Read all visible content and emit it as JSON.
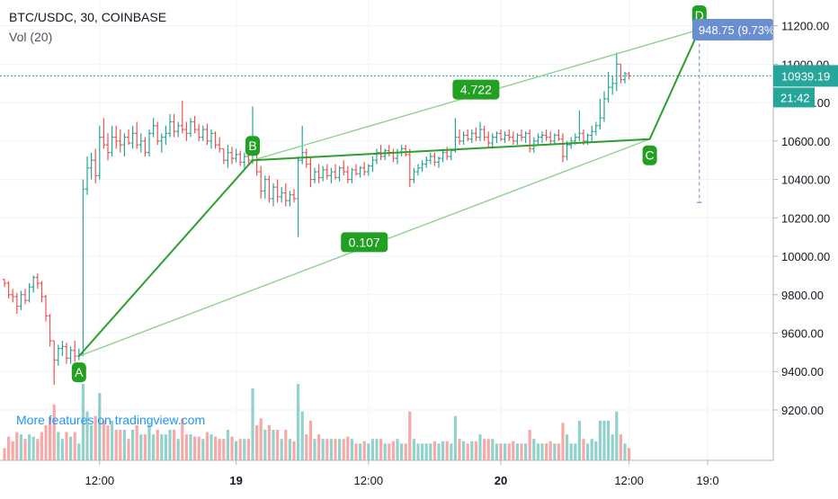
{
  "header": {
    "symbol_line": "BTC/USDC, 30, COINBASE",
    "volume_label": "Vol (20)"
  },
  "watermark": "More features on tradingview.com",
  "colors": {
    "up": "#26a69a",
    "down": "#ef5350",
    "pattern": "#2e9e2e",
    "pattern_light": "#8fd18f",
    "label_bg": "#22a022",
    "price_tag": "#26a69a",
    "measure_tag": "#6a8fd1",
    "watermark": "#2196f3"
  },
  "chart_data": {
    "type": "candlestick",
    "title": "BTC/USDC, 30, COINBASE",
    "ylim": [
      9050,
      11250
    ],
    "y_ticks": [
      "11200.00",
      "11000.00",
      "10800.00",
      "10600.00",
      "10400.00",
      "10200.00",
      "10000.00",
      "9800.00",
      "9600.00",
      "9400.00",
      "9200.00"
    ],
    "x_ticks": [
      "12:00",
      "19",
      "12:00",
      "20",
      "12:00",
      "19:0"
    ],
    "x_tick_index": [
      23,
      56,
      88,
      120,
      151,
      170
    ],
    "last_price": "10939.19",
    "countdown": "21:42",
    "measurement": "948.75 (9.73%",
    "pattern": {
      "points": [
        {
          "label": "A",
          "index": 18,
          "price": 9480
        },
        {
          "label": "B",
          "index": 60,
          "price": 10500
        },
        {
          "label": "C",
          "index": 156,
          "price": 10610
        },
        {
          "label": "D",
          "index": 168,
          "price": 11180
        }
      ],
      "ratios": [
        {
          "text": "4.722"
        },
        {
          "text": "0.107"
        }
      ]
    },
    "candles": [
      [
        9880,
        9880,
        9840,
        9860
      ],
      [
        9860,
        9870,
        9780,
        9800
      ],
      [
        9800,
        9830,
        9760,
        9790
      ],
      [
        9790,
        9810,
        9700,
        9740
      ],
      [
        9740,
        9820,
        9720,
        9800
      ],
      [
        9800,
        9830,
        9750,
        9770
      ],
      [
        9770,
        9860,
        9760,
        9840
      ],
      [
        9840,
        9900,
        9810,
        9890
      ],
      [
        9890,
        9910,
        9830,
        9860
      ],
      [
        9860,
        9870,
        9760,
        9790
      ],
      [
        9790,
        9800,
        9660,
        9690
      ],
      [
        9690,
        9700,
        9530,
        9560
      ],
      [
        9560,
        9560,
        9330,
        9460
      ],
      [
        9460,
        9540,
        9430,
        9520
      ],
      [
        9520,
        9560,
        9480,
        9530
      ],
      [
        9530,
        9550,
        9440,
        9470
      ],
      [
        9470,
        9530,
        9440,
        9510
      ],
      [
        9510,
        9560,
        9450,
        9480
      ],
      [
        9480,
        9520,
        9460,
        9490
      ],
      [
        9490,
        10400,
        9480,
        10350
      ],
      [
        10350,
        10520,
        10320,
        10460
      ],
      [
        10460,
        10540,
        10400,
        10500
      ],
      [
        10500,
        10560,
        10380,
        10420
      ],
      [
        10420,
        10680,
        10400,
        10620
      ],
      [
        10620,
        10720,
        10560,
        10580
      ],
      [
        10580,
        10640,
        10500,
        10540
      ],
      [
        10540,
        10680,
        10520,
        10620
      ],
      [
        10620,
        10680,
        10560,
        10600
      ],
      [
        10600,
        10660,
        10540,
        10580
      ],
      [
        10580,
        10640,
        10520,
        10620
      ],
      [
        10620,
        10660,
        10580,
        10590
      ],
      [
        10590,
        10680,
        10560,
        10640
      ],
      [
        10640,
        10700,
        10560,
        10580
      ],
      [
        10580,
        10640,
        10540,
        10600
      ],
      [
        10600,
        10620,
        10520,
        10540
      ],
      [
        10540,
        10660,
        10520,
        10640
      ],
      [
        10640,
        10720,
        10620,
        10680
      ],
      [
        10680,
        10700,
        10580,
        10600
      ],
      [
        10600,
        10640,
        10540,
        10620
      ],
      [
        10620,
        10680,
        10580,
        10640
      ],
      [
        10640,
        10740,
        10620,
        10700
      ],
      [
        10700,
        10740,
        10620,
        10650
      ],
      [
        10650,
        10700,
        10620,
        10680
      ],
      [
        10680,
        10810,
        10640,
        10660
      ],
      [
        10660,
        10700,
        10600,
        10640
      ],
      [
        10640,
        10720,
        10620,
        10700
      ],
      [
        10700,
        10730,
        10640,
        10660
      ],
      [
        10660,
        10690,
        10600,
        10620
      ],
      [
        10620,
        10680,
        10600,
        10660
      ],
      [
        10660,
        10690,
        10580,
        10600
      ],
      [
        10600,
        10660,
        10560,
        10640
      ],
      [
        10640,
        10650,
        10560,
        10580
      ],
      [
        10580,
        10620,
        10540,
        10560
      ],
      [
        10560,
        10560,
        10480,
        10500
      ],
      [
        10500,
        10580,
        10460,
        10540
      ],
      [
        10540,
        10570,
        10480,
        10510
      ],
      [
        10510,
        10560,
        10490,
        10530
      ],
      [
        10530,
        10550,
        10470,
        10490
      ],
      [
        10490,
        10540,
        10460,
        10520
      ],
      [
        10520,
        10560,
        10480,
        10500
      ],
      [
        10500,
        10780,
        10480,
        10540
      ],
      [
        10540,
        10560,
        10420,
        10440
      ],
      [
        10440,
        10470,
        10300,
        10340
      ],
      [
        10340,
        10420,
        10300,
        10400
      ],
      [
        10400,
        10420,
        10280,
        10300
      ],
      [
        10300,
        10380,
        10260,
        10360
      ],
      [
        10360,
        10400,
        10280,
        10310
      ],
      [
        10310,
        10360,
        10280,
        10330
      ],
      [
        10330,
        10380,
        10260,
        10290
      ],
      [
        10290,
        10340,
        10260,
        10320
      ],
      [
        10320,
        10350,
        10280,
        10300
      ],
      [
        10300,
        10520,
        10100,
        10500
      ],
      [
        10500,
        10680,
        10480,
        10540
      ],
      [
        10540,
        10560,
        10460,
        10480
      ],
      [
        10480,
        10520,
        10360,
        10400
      ],
      [
        10400,
        10460,
        10380,
        10440
      ],
      [
        10440,
        10480,
        10380,
        10410
      ],
      [
        10410,
        10470,
        10390,
        10450
      ],
      [
        10450,
        10480,
        10400,
        10420
      ],
      [
        10420,
        10460,
        10380,
        10440
      ],
      [
        10440,
        10480,
        10400,
        10410
      ],
      [
        10410,
        10470,
        10390,
        10460
      ],
      [
        10460,
        10500,
        10420,
        10440
      ],
      [
        10440,
        10470,
        10380,
        10400
      ],
      [
        10400,
        10460,
        10380,
        10450
      ],
      [
        10450,
        10480,
        10420,
        10430
      ],
      [
        10430,
        10470,
        10410,
        10460
      ],
      [
        10460,
        10490,
        10420,
        10440
      ],
      [
        10440,
        10480,
        10420,
        10470
      ],
      [
        10470,
        10520,
        10440,
        10500
      ],
      [
        10500,
        10560,
        10480,
        10540
      ],
      [
        10540,
        10580,
        10500,
        10520
      ],
      [
        10520,
        10560,
        10500,
        10550
      ],
      [
        10550,
        10580,
        10520,
        10540
      ],
      [
        10540,
        10560,
        10490,
        10510
      ],
      [
        10510,
        10560,
        10480,
        10540
      ],
      [
        10540,
        10580,
        10520,
        10560
      ],
      [
        10560,
        10580,
        10520,
        10530
      ],
      [
        10530,
        10560,
        10360,
        10400
      ],
      [
        10400,
        10460,
        10380,
        10440
      ],
      [
        10440,
        10480,
        10420,
        10460
      ],
      [
        10460,
        10500,
        10440,
        10480
      ],
      [
        10480,
        10520,
        10460,
        10500
      ],
      [
        10500,
        10540,
        10480,
        10520
      ],
      [
        10520,
        10540,
        10470,
        10490
      ],
      [
        10490,
        10520,
        10460,
        10510
      ],
      [
        10510,
        10560,
        10490,
        10540
      ],
      [
        10540,
        10570,
        10500,
        10520
      ],
      [
        10520,
        10560,
        10500,
        10550
      ],
      [
        10550,
        10720,
        10540,
        10620
      ],
      [
        10620,
        10660,
        10580,
        10600
      ],
      [
        10600,
        10650,
        10580,
        10630
      ],
      [
        10630,
        10660,
        10600,
        10610
      ],
      [
        10610,
        10660,
        10590,
        10640
      ],
      [
        10640,
        10670,
        10600,
        10620
      ],
      [
        10620,
        10700,
        10600,
        10660
      ],
      [
        10660,
        10680,
        10600,
        10620
      ],
      [
        10620,
        10650,
        10570,
        10590
      ],
      [
        10590,
        10640,
        10560,
        10620
      ],
      [
        10620,
        10650,
        10590,
        10640
      ],
      [
        10640,
        10660,
        10600,
        10610
      ],
      [
        10610,
        10650,
        10590,
        10630
      ],
      [
        10630,
        10660,
        10600,
        10620
      ],
      [
        10620,
        10650,
        10580,
        10600
      ],
      [
        10600,
        10640,
        10580,
        10630
      ],
      [
        10630,
        10660,
        10600,
        10620
      ],
      [
        10620,
        10650,
        10590,
        10640
      ],
      [
        10640,
        10660,
        10540,
        10560
      ],
      [
        10560,
        10620,
        10540,
        10600
      ],
      [
        10600,
        10640,
        10580,
        10620
      ],
      [
        10620,
        10650,
        10590,
        10630
      ],
      [
        10630,
        10660,
        10600,
        10620
      ],
      [
        10620,
        10650,
        10580,
        10600
      ],
      [
        10600,
        10640,
        10580,
        10630
      ],
      [
        10630,
        10660,
        10600,
        10610
      ],
      [
        10610,
        10640,
        10490,
        10520
      ],
      [
        10520,
        10600,
        10500,
        10580
      ],
      [
        10580,
        10620,
        10560,
        10600
      ],
      [
        10600,
        10640,
        10580,
        10620
      ],
      [
        10620,
        10760,
        10600,
        10640
      ],
      [
        10640,
        10660,
        10580,
        10600
      ],
      [
        10600,
        10640,
        10580,
        10630
      ],
      [
        10630,
        10680,
        10600,
        10650
      ],
      [
        10650,
        10700,
        10630,
        10680
      ],
      [
        10680,
        10820,
        10660,
        10720
      ],
      [
        10720,
        10860,
        10700,
        10820
      ],
      [
        10820,
        10960,
        10800,
        10880
      ],
      [
        10880,
        10940,
        10840,
        10900
      ],
      [
        10900,
        11060,
        10860,
        11000
      ],
      [
        11000,
        11000,
        10900,
        10920
      ],
      [
        10920,
        10960,
        10900,
        10950
      ],
      [
        10950,
        10960,
        10920,
        10939
      ]
    ],
    "volume_max": 3000
  }
}
